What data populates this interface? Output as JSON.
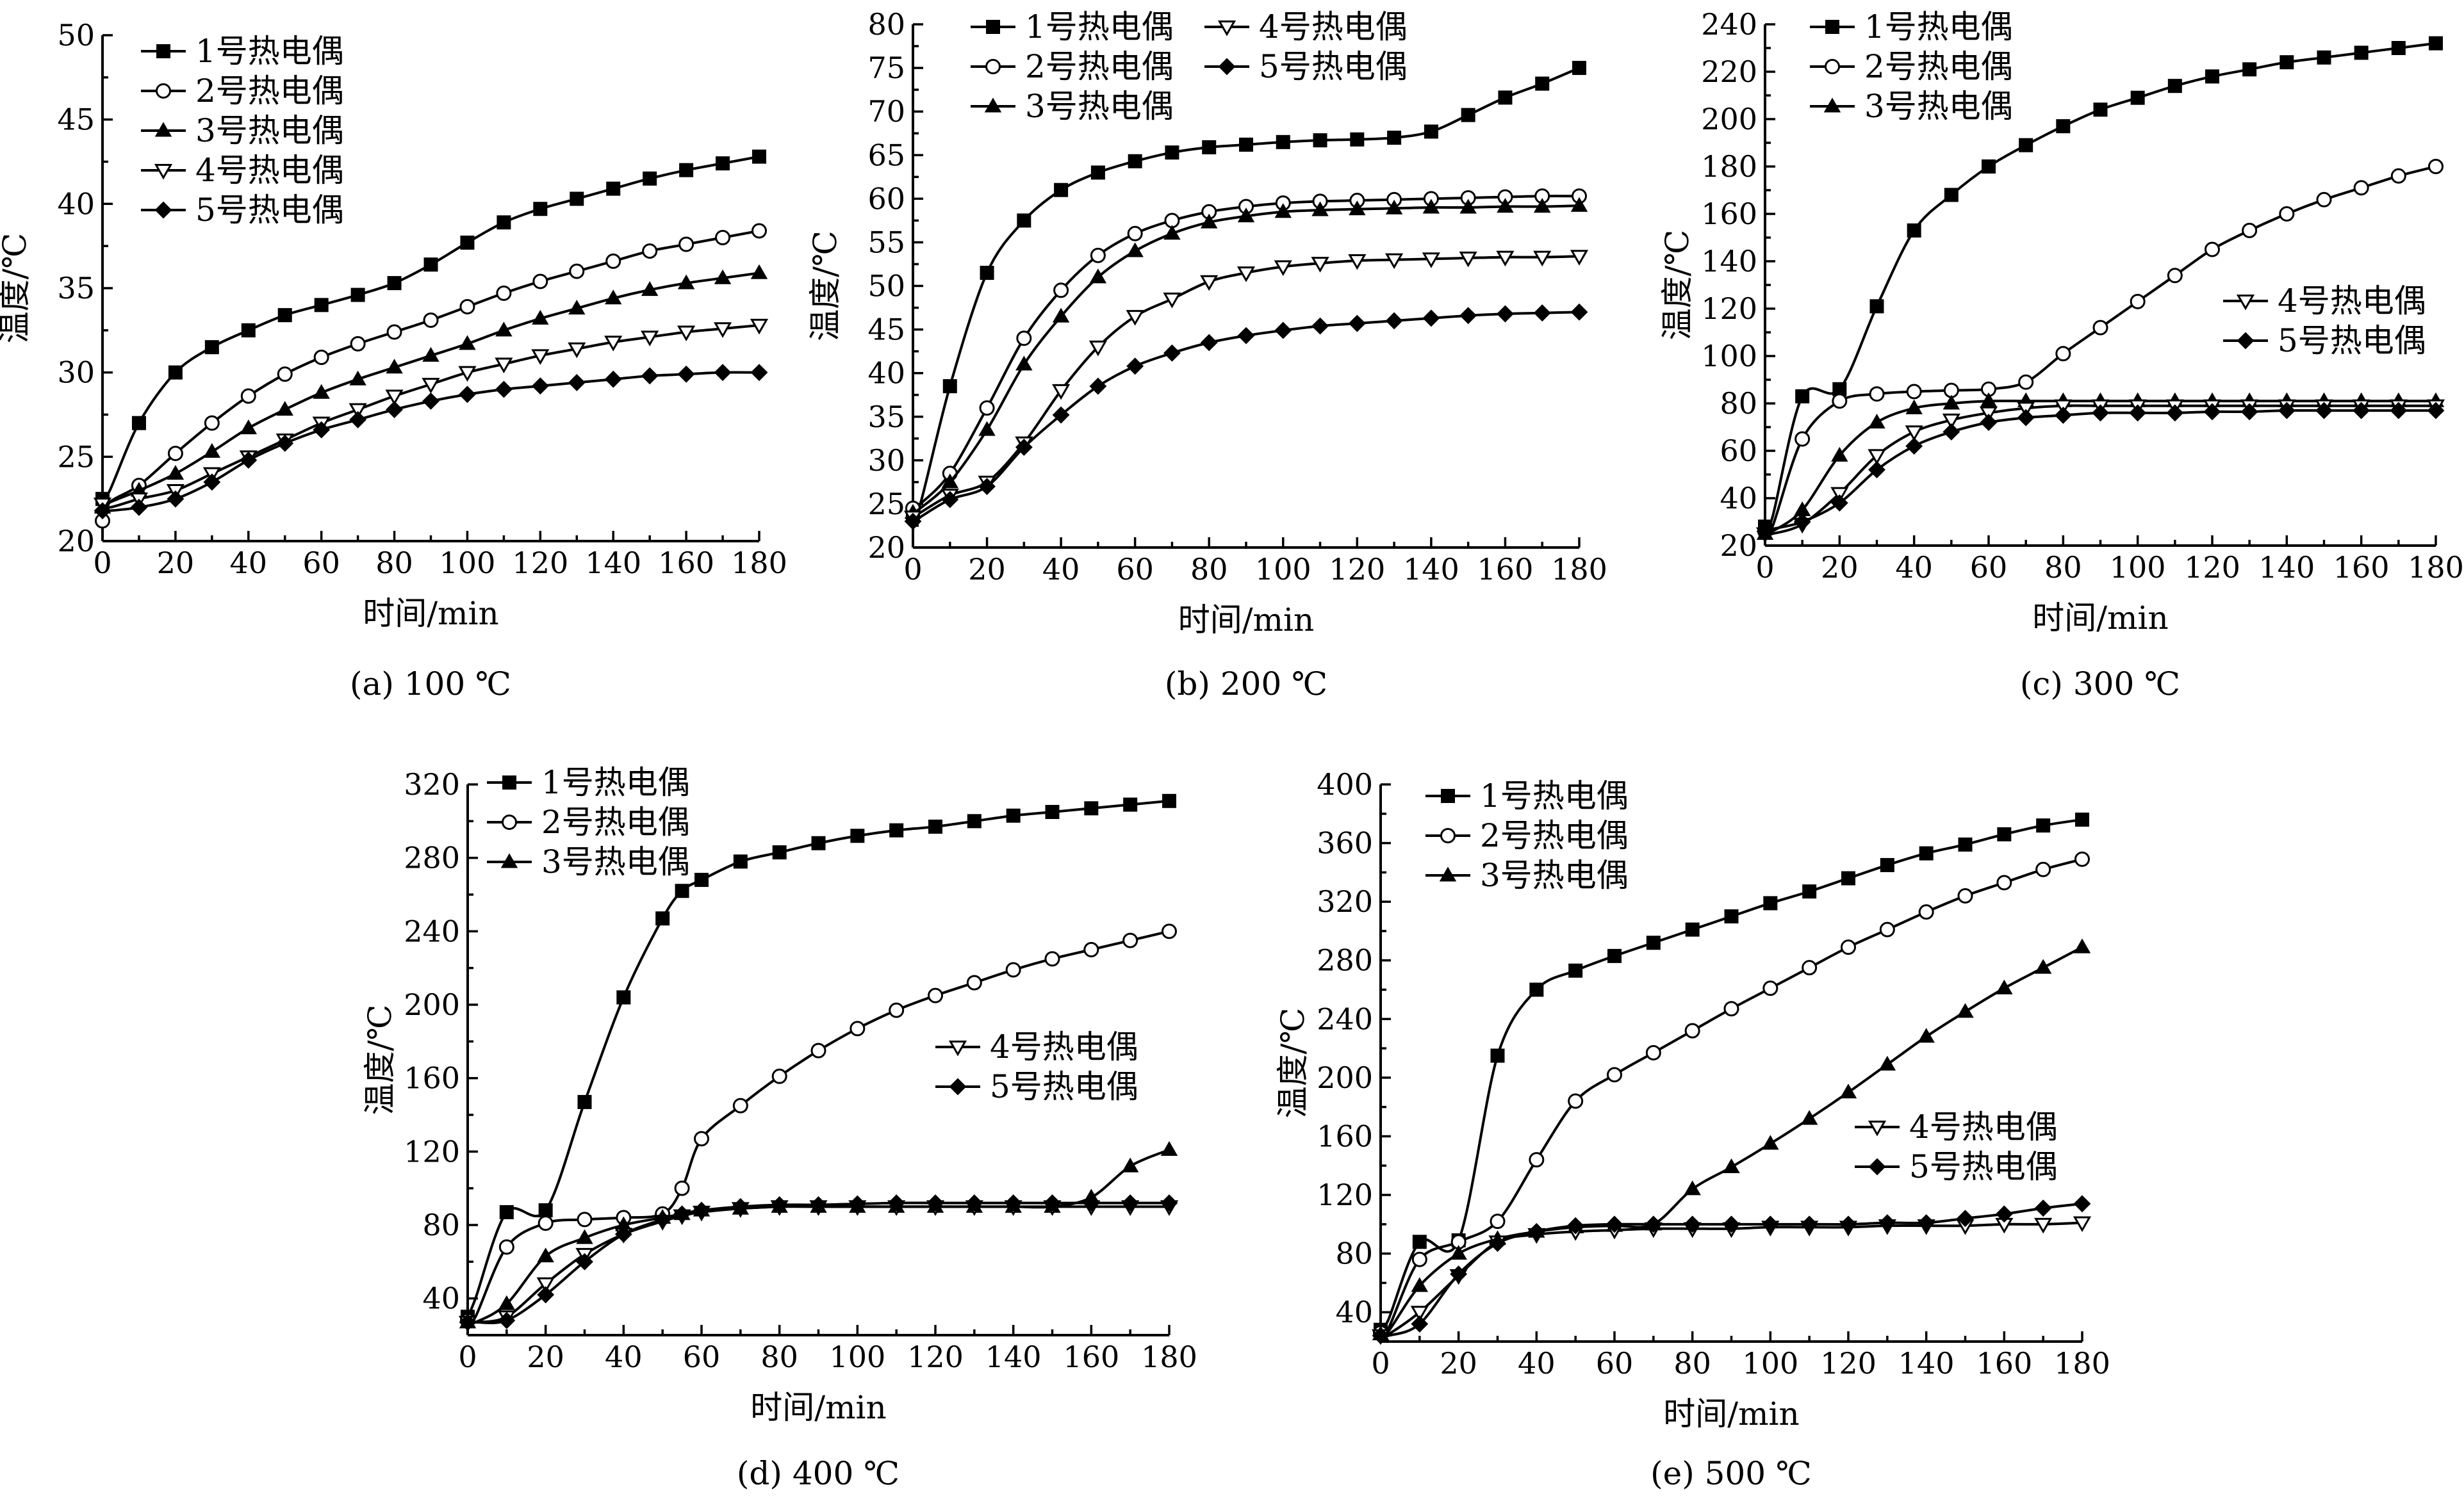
{
  "chart_data": [
    {
      "type": "line",
      "caption": "(a) 100 ℃",
      "xlabel": "时间/min",
      "ylabel": "温度/℃",
      "xlim": [
        0,
        180
      ],
      "ylim": [
        20,
        50
      ],
      "xticks": [
        0,
        20,
        40,
        60,
        80,
        100,
        120,
        140,
        160,
        180
      ],
      "yticks": [
        20,
        25,
        30,
        35,
        40,
        45,
        50
      ],
      "legend_position": "top-left",
      "x": [
        0,
        2,
        10,
        20,
        30,
        40,
        50,
        60,
        70,
        80,
        90,
        100,
        110,
        120,
        130,
        140,
        150,
        160,
        170,
        180
      ],
      "series": [
        {
          "name": "1号热电偶",
          "marker": "square-filled",
          "values": [
            22.5,
            23,
            27,
            30,
            31.5,
            32.5,
            33.4,
            34.0,
            34.6,
            35.3,
            36.4,
            37.7,
            38.9,
            39.7,
            40.3,
            40.9,
            41.5,
            42.0,
            42.4,
            42.8
          ]
        },
        {
          "name": "2号热电偶",
          "marker": "circle-open",
          "values": [
            21.2,
            22.3,
            23.3,
            25.2,
            27.0,
            28.6,
            29.9,
            30.9,
            31.7,
            32.4,
            33.1,
            33.9,
            34.7,
            35.4,
            36.0,
            36.6,
            37.2,
            37.6,
            38.0,
            38.4
          ]
        },
        {
          "name": "3号热电偶",
          "marker": "triangle-up-filled",
          "values": [
            22.0,
            22.3,
            23.0,
            24.0,
            25.3,
            26.7,
            27.8,
            28.8,
            29.6,
            30.3,
            31.0,
            31.7,
            32.5,
            33.2,
            33.8,
            34.4,
            34.9,
            35.3,
            35.6,
            35.9
          ]
        },
        {
          "name": "4号热电偶",
          "marker": "triangle-down-open",
          "values": [
            22.2,
            22.0,
            22.5,
            23.0,
            24.0,
            25.0,
            26.0,
            27.0,
            27.8,
            28.6,
            29.3,
            30.0,
            30.5,
            31.0,
            31.4,
            31.8,
            32.1,
            32.4,
            32.6,
            32.8
          ]
        },
        {
          "name": "5号热电偶",
          "marker": "diamond-filled",
          "values": [
            21.8,
            21.8,
            22.0,
            22.5,
            23.5,
            24.8,
            25.8,
            26.6,
            27.2,
            27.8,
            28.3,
            28.7,
            29.0,
            29.2,
            29.4,
            29.6,
            29.8,
            29.9,
            30.0,
            30.0
          ]
        }
      ]
    },
    {
      "type": "line",
      "caption": "(b) 200 ℃",
      "xlabel": "时间/min",
      "ylabel": "温度/℃",
      "xlim": [
        0,
        180
      ],
      "ylim": [
        20,
        80
      ],
      "xticks": [
        0,
        20,
        40,
        60,
        80,
        100,
        120,
        140,
        160,
        180
      ],
      "yticks": [
        20,
        25,
        30,
        35,
        40,
        45,
        50,
        55,
        60,
        65,
        70,
        75,
        80
      ],
      "legend_position": "top",
      "x": [
        0,
        2,
        10,
        20,
        30,
        40,
        50,
        60,
        70,
        80,
        90,
        100,
        110,
        120,
        130,
        140,
        150,
        160,
        170,
        180
      ],
      "series": [
        {
          "name": "1号热电偶",
          "marker": "square-filled",
          "values": [
            24,
            25,
            38.5,
            51.5,
            57.5,
            61,
            63,
            64.3,
            65.3,
            65.9,
            66.2,
            66.5,
            66.7,
            66.8,
            67.0,
            67.7,
            69.6,
            71.6,
            73.2,
            75
          ]
        },
        {
          "name": "2号热电偶",
          "marker": "circle-open",
          "values": [
            24.5,
            25,
            28.5,
            36,
            44,
            49.5,
            53.5,
            56,
            57.5,
            58.5,
            59.1,
            59.5,
            59.7,
            59.8,
            59.9,
            60.0,
            60.1,
            60.2,
            60.3,
            60.3
          ]
        },
        {
          "name": "3号热电偶",
          "marker": "triangle-up-filled",
          "values": [
            24,
            24.5,
            27.5,
            33.5,
            41,
            46.5,
            51,
            54,
            56,
            57.3,
            58.0,
            58.5,
            58.7,
            58.8,
            58.9,
            59.0,
            59.0,
            59.1,
            59.1,
            59.2
          ]
        },
        {
          "name": "4号热电偶",
          "marker": "triangle-down-open",
          "values": [
            23.5,
            24,
            26,
            27.5,
            32,
            38,
            43,
            46.5,
            48.5,
            50.5,
            51.5,
            52.2,
            52.6,
            52.9,
            53.0,
            53.1,
            53.2,
            53.3,
            53.3,
            53.4
          ]
        },
        {
          "name": "5号热电偶",
          "marker": "diamond-filled",
          "values": [
            23,
            23.5,
            25.5,
            27,
            31.5,
            35.2,
            38.5,
            40.8,
            42.3,
            43.5,
            44.3,
            44.9,
            45.4,
            45.7,
            46.0,
            46.3,
            46.6,
            46.8,
            46.9,
            47.0
          ]
        }
      ]
    },
    {
      "type": "line",
      "caption": "(c) 300 ℃",
      "xlabel": "时间/min",
      "ylabel": "温度/℃",
      "xlim": [
        0,
        180
      ],
      "ylim": [
        20,
        240
      ],
      "xticks": [
        0,
        20,
        40,
        60,
        80,
        100,
        120,
        140,
        160,
        180
      ],
      "yticks": [
        20,
        40,
        60,
        80,
        100,
        120,
        140,
        160,
        180,
        200,
        220,
        240
      ],
      "legend_position": "top-left",
      "legend2_position": "center-right",
      "x": [
        0,
        2,
        10,
        20,
        30,
        40,
        50,
        60,
        70,
        80,
        90,
        100,
        110,
        120,
        130,
        140,
        150,
        160,
        170,
        180
      ],
      "series": [
        {
          "name": "1号热电偶",
          "marker": "square-filled",
          "values": [
            28,
            32,
            83,
            86,
            121,
            153,
            168,
            180,
            189,
            197,
            204,
            209,
            214,
            218,
            221,
            224,
            226,
            228,
            230,
            232
          ]
        },
        {
          "name": "2号热电偶",
          "marker": "circle-open",
          "values": [
            26,
            28,
            65,
            81,
            84,
            85,
            85.5,
            86,
            89,
            101,
            112,
            123,
            134,
            145,
            153,
            160,
            166,
            171,
            176,
            180
          ]
        },
        {
          "name": "3号热电偶",
          "marker": "triangle-up-filled",
          "values": [
            25,
            26,
            35,
            58,
            72,
            78,
            80,
            81,
            81,
            81,
            81,
            81,
            81,
            81,
            81,
            81,
            81,
            81,
            81,
            81
          ]
        },
        {
          "name": "4号热电偶",
          "marker": "triangle-down-open",
          "values": [
            25,
            25,
            29,
            42,
            58,
            68,
            73,
            76,
            78,
            79,
            79,
            79,
            79,
            79,
            79,
            79,
            79,
            79,
            79,
            79
          ]
        },
        {
          "name": "5号热电偶",
          "marker": "diamond-filled",
          "values": [
            26,
            27,
            30,
            38,
            52,
            62,
            68,
            72,
            74,
            75,
            76,
            76,
            76,
            76.5,
            76.5,
            77,
            77,
            77,
            77,
            77
          ]
        }
      ]
    },
    {
      "type": "line",
      "caption": "(d) 400 ℃",
      "xlabel": "时间/min",
      "ylabel": "温度/℃",
      "xlim": [
        0,
        180
      ],
      "ylim": [
        20,
        320
      ],
      "xticks": [
        0,
        20,
        40,
        60,
        80,
        100,
        120,
        140,
        160,
        180
      ],
      "yticks": [
        40,
        80,
        120,
        160,
        200,
        240,
        280,
        320
      ],
      "legend_position": "top-left",
      "legend2_position": "center-right",
      "x": [
        0,
        2,
        10,
        20,
        30,
        40,
        50,
        55,
        60,
        70,
        80,
        90,
        100,
        110,
        120,
        130,
        140,
        150,
        160,
        170,
        180
      ],
      "series": [
        {
          "name": "1号热电偶",
          "marker": "square-filled",
          "values": [
            30,
            40,
            87,
            88,
            147,
            204,
            247,
            262,
            268,
            278,
            283,
            288,
            292,
            295,
            297,
            300,
            303,
            305,
            307,
            309,
            311
          ]
        },
        {
          "name": "2号热电偶",
          "marker": "circle-open",
          "values": [
            28,
            30,
            68,
            81,
            83,
            84,
            86,
            100,
            127,
            145,
            161,
            175,
            187,
            197,
            205,
            212,
            219,
            225,
            230,
            235,
            240
          ]
        },
        {
          "name": "3号热电偶",
          "marker": "triangle-up-filled",
          "values": [
            27,
            27,
            37,
            63,
            73,
            80,
            84,
            86,
            88,
            89,
            90,
            90,
            90,
            90,
            90,
            90,
            90,
            90,
            95,
            112,
            121
          ]
        },
        {
          "name": "4号热电偶",
          "marker": "triangle-down-open",
          "values": [
            27,
            27,
            30,
            48,
            64,
            75,
            82,
            85,
            87,
            89,
            90,
            90,
            90,
            90,
            90,
            90,
            90,
            90,
            90,
            90,
            90
          ]
        },
        {
          "name": "5号热电偶",
          "marker": "diamond-filled",
          "values": [
            27,
            27,
            28,
            42,
            60,
            75,
            83,
            86,
            88,
            90,
            91,
            91,
            91.5,
            92,
            92,
            92,
            92,
            92,
            92,
            92,
            92
          ]
        }
      ]
    },
    {
      "type": "line",
      "caption": "(e) 500 ℃",
      "xlabel": "时间/min",
      "ylabel": "温度/℃",
      "xlim": [
        0,
        180
      ],
      "ylim": [
        20,
        400
      ],
      "xticks": [
        0,
        20,
        40,
        60,
        80,
        100,
        120,
        140,
        160,
        180
      ],
      "yticks": [
        40,
        80,
        120,
        160,
        200,
        240,
        280,
        320,
        360,
        400
      ],
      "legend_position": "top-left",
      "legend2_position": "center-right",
      "x": [
        0,
        2,
        10,
        20,
        30,
        40,
        50,
        60,
        70,
        80,
        90,
        100,
        110,
        120,
        130,
        140,
        150,
        160,
        170,
        180
      ],
      "series": [
        {
          "name": "1号热电偶",
          "marker": "square-filled",
          "values": [
            28,
            35,
            88,
            89,
            215,
            260,
            273,
            283,
            292,
            301,
            310,
            319,
            327,
            336,
            345,
            353,
            359,
            366,
            372,
            376
          ]
        },
        {
          "name": "2号热电偶",
          "marker": "circle-open",
          "values": [
            26,
            29,
            76,
            88,
            102,
            144,
            184,
            202,
            217,
            232,
            247,
            261,
            275,
            289,
            301,
            313,
            324,
            333,
            342,
            349
          ]
        },
        {
          "name": "3号热电偶",
          "marker": "triangle-up-filled",
          "values": [
            25,
            27,
            58,
            80,
            90,
            95,
            98,
            99,
            100,
            124,
            139,
            155,
            172,
            190,
            209,
            228,
            245,
            261,
            275,
            289
          ]
        },
        {
          "name": "4号热电偶",
          "marker": "triangle-down-open",
          "values": [
            24,
            25,
            40,
            65,
            88,
            93,
            95,
            96,
            97,
            97,
            97,
            98,
            98,
            98,
            99,
            99,
            99,
            100,
            100,
            101
          ]
        },
        {
          "name": "5号热电偶",
          "marker": "diamond-filled",
          "values": [
            24,
            24,
            32,
            66,
            87,
            95,
            99,
            100,
            100,
            100,
            100,
            100,
            100,
            100,
            101,
            101,
            104,
            107,
            111,
            114
          ]
        }
      ]
    }
  ]
}
